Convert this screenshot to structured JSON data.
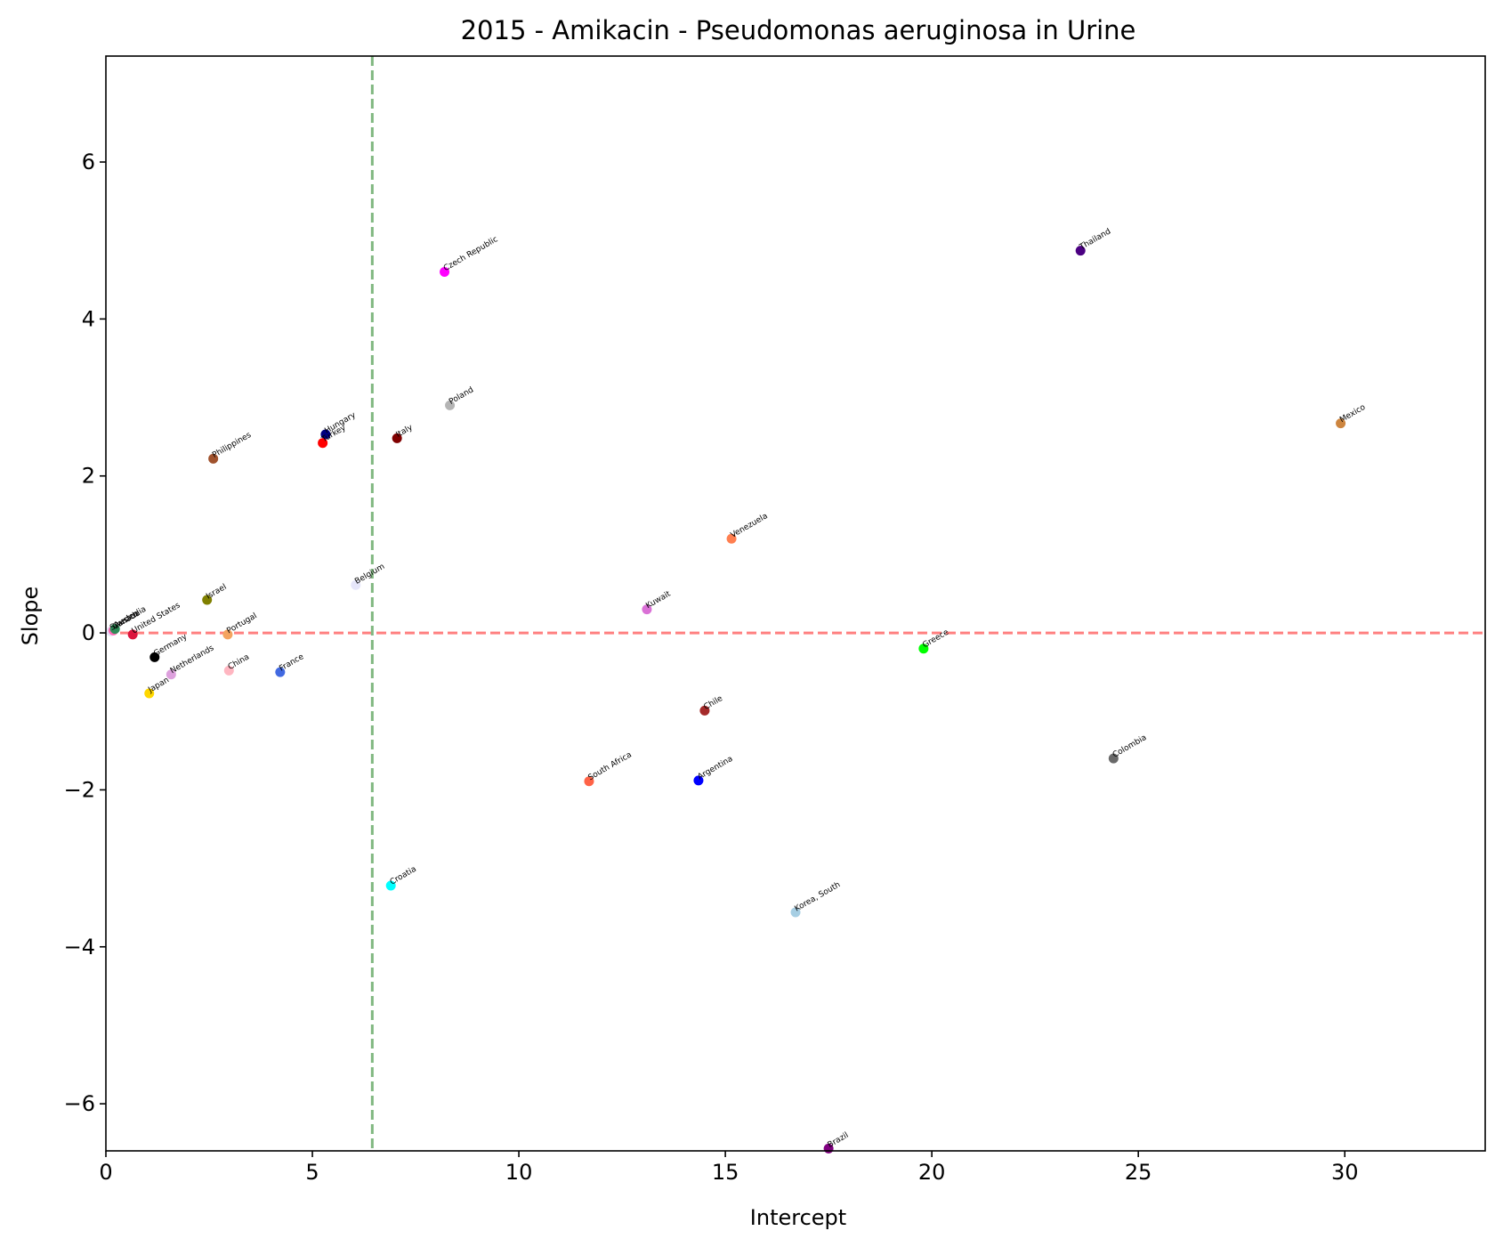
{
  "chart_data": {
    "type": "scatter",
    "title": "2015 - Amikacin - Pseudomonas aeruginosa in Urine",
    "xlabel": "Intercept",
    "ylabel": "Slope",
    "xlim": [
      0,
      33.4
    ],
    "ylim": [
      -6.6,
      7.35
    ],
    "xticks": [
      0,
      5,
      10,
      15,
      20,
      25,
      30
    ],
    "yticks": [
      -6,
      -4,
      -2,
      0,
      2,
      4,
      6
    ],
    "xtick_labels": [
      "0",
      "5",
      "10",
      "15",
      "20",
      "25",
      "30"
    ],
    "ytick_labels": [
      "−6",
      "−4",
      "−2",
      "0",
      "2",
      "4",
      "6"
    ],
    "grid": false,
    "reference_lines": {
      "horizontal": {
        "y": 0,
        "color": "#ff8080",
        "style": "dashed"
      },
      "vertical": {
        "x": 6.45,
        "color": "#80b880",
        "style": "dashed"
      }
    },
    "points": [
      {
        "name": "Thailand",
        "x": 23.6,
        "y": 4.87,
        "color": "#4b0082"
      },
      {
        "name": "Czech Republic",
        "x": 8.2,
        "y": 4.6,
        "color": "#ff00ff"
      },
      {
        "name": "Poland",
        "x": 8.33,
        "y": 2.9,
        "color": "#b4b4b4"
      },
      {
        "name": "Mexico",
        "x": 29.9,
        "y": 2.67,
        "color": "#cd853f"
      },
      {
        "name": "Hungary",
        "x": 5.32,
        "y": 2.53,
        "color": "#000080"
      },
      {
        "name": "Italy",
        "x": 7.05,
        "y": 2.48,
        "color": "#800000"
      },
      {
        "name": "Turkey",
        "x": 5.25,
        "y": 2.42,
        "color": "#ff0000"
      },
      {
        "name": "Philippines",
        "x": 2.6,
        "y": 2.22,
        "color": "#a0522d"
      },
      {
        "name": "Venezuela",
        "x": 15.15,
        "y": 1.2,
        "color": "#ff7f50"
      },
      {
        "name": "Belgium",
        "x": 6.05,
        "y": 0.61,
        "color": "#e6e6fa"
      },
      {
        "name": "Israel",
        "x": 2.45,
        "y": 0.42,
        "color": "#808000"
      },
      {
        "name": "Kuwait",
        "x": 13.1,
        "y": 0.3,
        "color": "#da70d6"
      },
      {
        "name": "Sweden",
        "x": 0.12,
        "y": 0.02,
        "color": "#e6e6fa"
      },
      {
        "name": "Canada",
        "x": 0.18,
        "y": 0.03,
        "color": "#ff69b4"
      },
      {
        "name": "Australia",
        "x": 0.22,
        "y": 0.05,
        "color": "#2e8b57"
      },
      {
        "name": "United States",
        "x": 0.65,
        "y": -0.02,
        "color": "#dc143c"
      },
      {
        "name": "Portugal",
        "x": 2.95,
        "y": -0.02,
        "color": "#f4a460"
      },
      {
        "name": "Greece",
        "x": 19.8,
        "y": -0.2,
        "color": "#00ff00"
      },
      {
        "name": "Germany",
        "x": 1.18,
        "y": -0.31,
        "color": "#000000"
      },
      {
        "name": "China",
        "x": 2.98,
        "y": -0.48,
        "color": "#ffb6c1"
      },
      {
        "name": "France",
        "x": 4.22,
        "y": -0.5,
        "color": "#4169e1"
      },
      {
        "name": "Netherlands",
        "x": 1.58,
        "y": -0.53,
        "color": "#dda0dd"
      },
      {
        "name": "Japan",
        "x": 1.05,
        "y": -0.77,
        "color": "#ffd700"
      },
      {
        "name": "Chile",
        "x": 14.5,
        "y": -0.99,
        "color": "#a52a2a"
      },
      {
        "name": "Colombia",
        "x": 24.4,
        "y": -1.6,
        "color": "#696969"
      },
      {
        "name": "South Africa",
        "x": 11.7,
        "y": -1.89,
        "color": "#ff6347"
      },
      {
        "name": "Argentina",
        "x": 14.35,
        "y": -1.88,
        "color": "#0000ff"
      },
      {
        "name": "Croatia",
        "x": 6.9,
        "y": -3.22,
        "color": "#00ffff"
      },
      {
        "name": "Korea, South",
        "x": 16.7,
        "y": -3.56,
        "color": "#a6cee3"
      },
      {
        "name": "Brazil",
        "x": 17.5,
        "y": -6.57,
        "color": "#800080"
      }
    ]
  }
}
